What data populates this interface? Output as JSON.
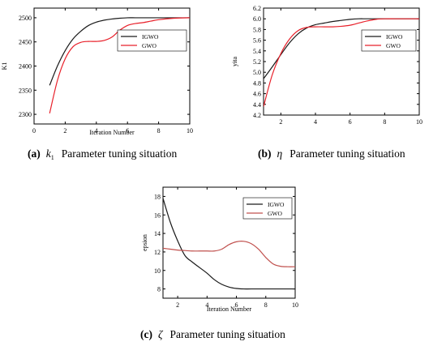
{
  "chart_data": [
    {
      "type": "line",
      "xlabel": "Iteration Number",
      "ylabel": "K1",
      "xlim": [
        0,
        10
      ],
      "ylim": [
        2280,
        2520
      ],
      "xticks": [
        0,
        2,
        4,
        6,
        8,
        10
      ],
      "yticks": [
        2300,
        2350,
        2400,
        2450,
        2500
      ],
      "legend": "top-right",
      "series": [
        {
          "name": "IGWO",
          "color": "#1a1a1a",
          "x": [
            1,
            1.5,
            2,
            2.5,
            3,
            3.5,
            4,
            4.5,
            5,
            5.5,
            6,
            6.5,
            7,
            8,
            9,
            10
          ],
          "y": [
            2360,
            2400,
            2432,
            2456,
            2472,
            2484,
            2491,
            2495,
            2497.5,
            2499,
            2500,
            2500,
            2500,
            2500,
            2500,
            2500
          ]
        },
        {
          "name": "GWO",
          "color": "#e8202a",
          "x": [
            1,
            1.5,
            2,
            2.5,
            3,
            3.5,
            4,
            4.5,
            5,
            5.5,
            6,
            6.5,
            7,
            7.5,
            8,
            9,
            10
          ],
          "y": [
            2302,
            2370,
            2415,
            2440,
            2449,
            2451,
            2451,
            2453,
            2460,
            2474,
            2484,
            2488,
            2490,
            2493,
            2496,
            2499,
            2500
          ]
        }
      ],
      "caption": {
        "tag": "(a)",
        "symbol": "k",
        "sub": "1",
        "text": "Parameter tuning situation"
      }
    },
    {
      "type": "line",
      "xlabel": "",
      "ylabel": "yita",
      "xlim": [
        1,
        10
      ],
      "ylim": [
        4.2,
        6.2
      ],
      "xticks": [
        2,
        4,
        6,
        8,
        10
      ],
      "yticks": [
        4.2,
        4.4,
        4.6,
        4.8,
        5.0,
        5.2,
        5.4,
        5.6,
        5.8,
        6.0,
        6.2
      ],
      "legend": "top-right",
      "series": [
        {
          "name": "IGWO",
          "color": "#1a1a1a",
          "x": [
            1,
            1.5,
            2,
            2.5,
            3,
            3.5,
            4,
            4.5,
            5,
            5.5,
            6,
            6.5,
            7,
            8,
            9,
            10
          ],
          "y": [
            4.88,
            5.1,
            5.33,
            5.55,
            5.72,
            5.83,
            5.89,
            5.92,
            5.95,
            5.97,
            5.99,
            6.0,
            6.0,
            6.0,
            6.0,
            6.0
          ]
        },
        {
          "name": "GWO",
          "color": "#e8202a",
          "x": [
            1,
            1.5,
            2,
            2.5,
            3,
            3.5,
            4,
            4.5,
            5,
            5.5,
            6,
            6.5,
            7,
            7.5,
            8,
            9,
            10
          ],
          "y": [
            4.36,
            4.95,
            5.35,
            5.62,
            5.78,
            5.84,
            5.85,
            5.85,
            5.85,
            5.86,
            5.88,
            5.92,
            5.96,
            5.99,
            6.0,
            6.0,
            6.0
          ]
        }
      ],
      "caption": {
        "tag": "(b)",
        "symbol": "η",
        "sub": "",
        "text": "Parameter tuning situation"
      }
    },
    {
      "type": "line",
      "xlabel": "Iteration Number",
      "ylabel": "epsion",
      "xlim": [
        1,
        10
      ],
      "ylim": [
        7,
        19
      ],
      "xticks": [
        2,
        4,
        6,
        8,
        10
      ],
      "yticks": [
        8,
        10,
        12,
        14,
        16,
        18
      ],
      "legend": "top-right",
      "series": [
        {
          "name": "IGWO",
          "color": "#1a1a1a",
          "x": [
            1,
            1.5,
            2,
            2.5,
            3,
            3.5,
            4,
            4.5,
            5,
            5.5,
            6,
            6.5,
            7,
            8,
            9,
            10
          ],
          "y": [
            17.8,
            15.2,
            13.2,
            11.6,
            10.9,
            10.3,
            9.7,
            9.0,
            8.5,
            8.2,
            8.05,
            8.0,
            8.0,
            8.0,
            8.0,
            8.0
          ]
        },
        {
          "name": "GWO",
          "color": "#c0504d",
          "x": [
            1,
            1.5,
            2,
            2.5,
            3,
            3.5,
            4,
            4.5,
            5,
            5.5,
            6,
            6.5,
            7,
            7.5,
            8,
            8.5,
            9,
            9.5,
            10
          ],
          "y": [
            12.4,
            12.3,
            12.2,
            12.15,
            12.1,
            12.1,
            12.1,
            12.1,
            12.3,
            12.8,
            13.1,
            13.15,
            12.9,
            12.3,
            11.4,
            10.7,
            10.45,
            10.4,
            10.4
          ]
        }
      ],
      "caption": {
        "tag": "(c)",
        "symbol": "ζ",
        "sub": "",
        "text": "Parameter tuning situation"
      }
    }
  ]
}
